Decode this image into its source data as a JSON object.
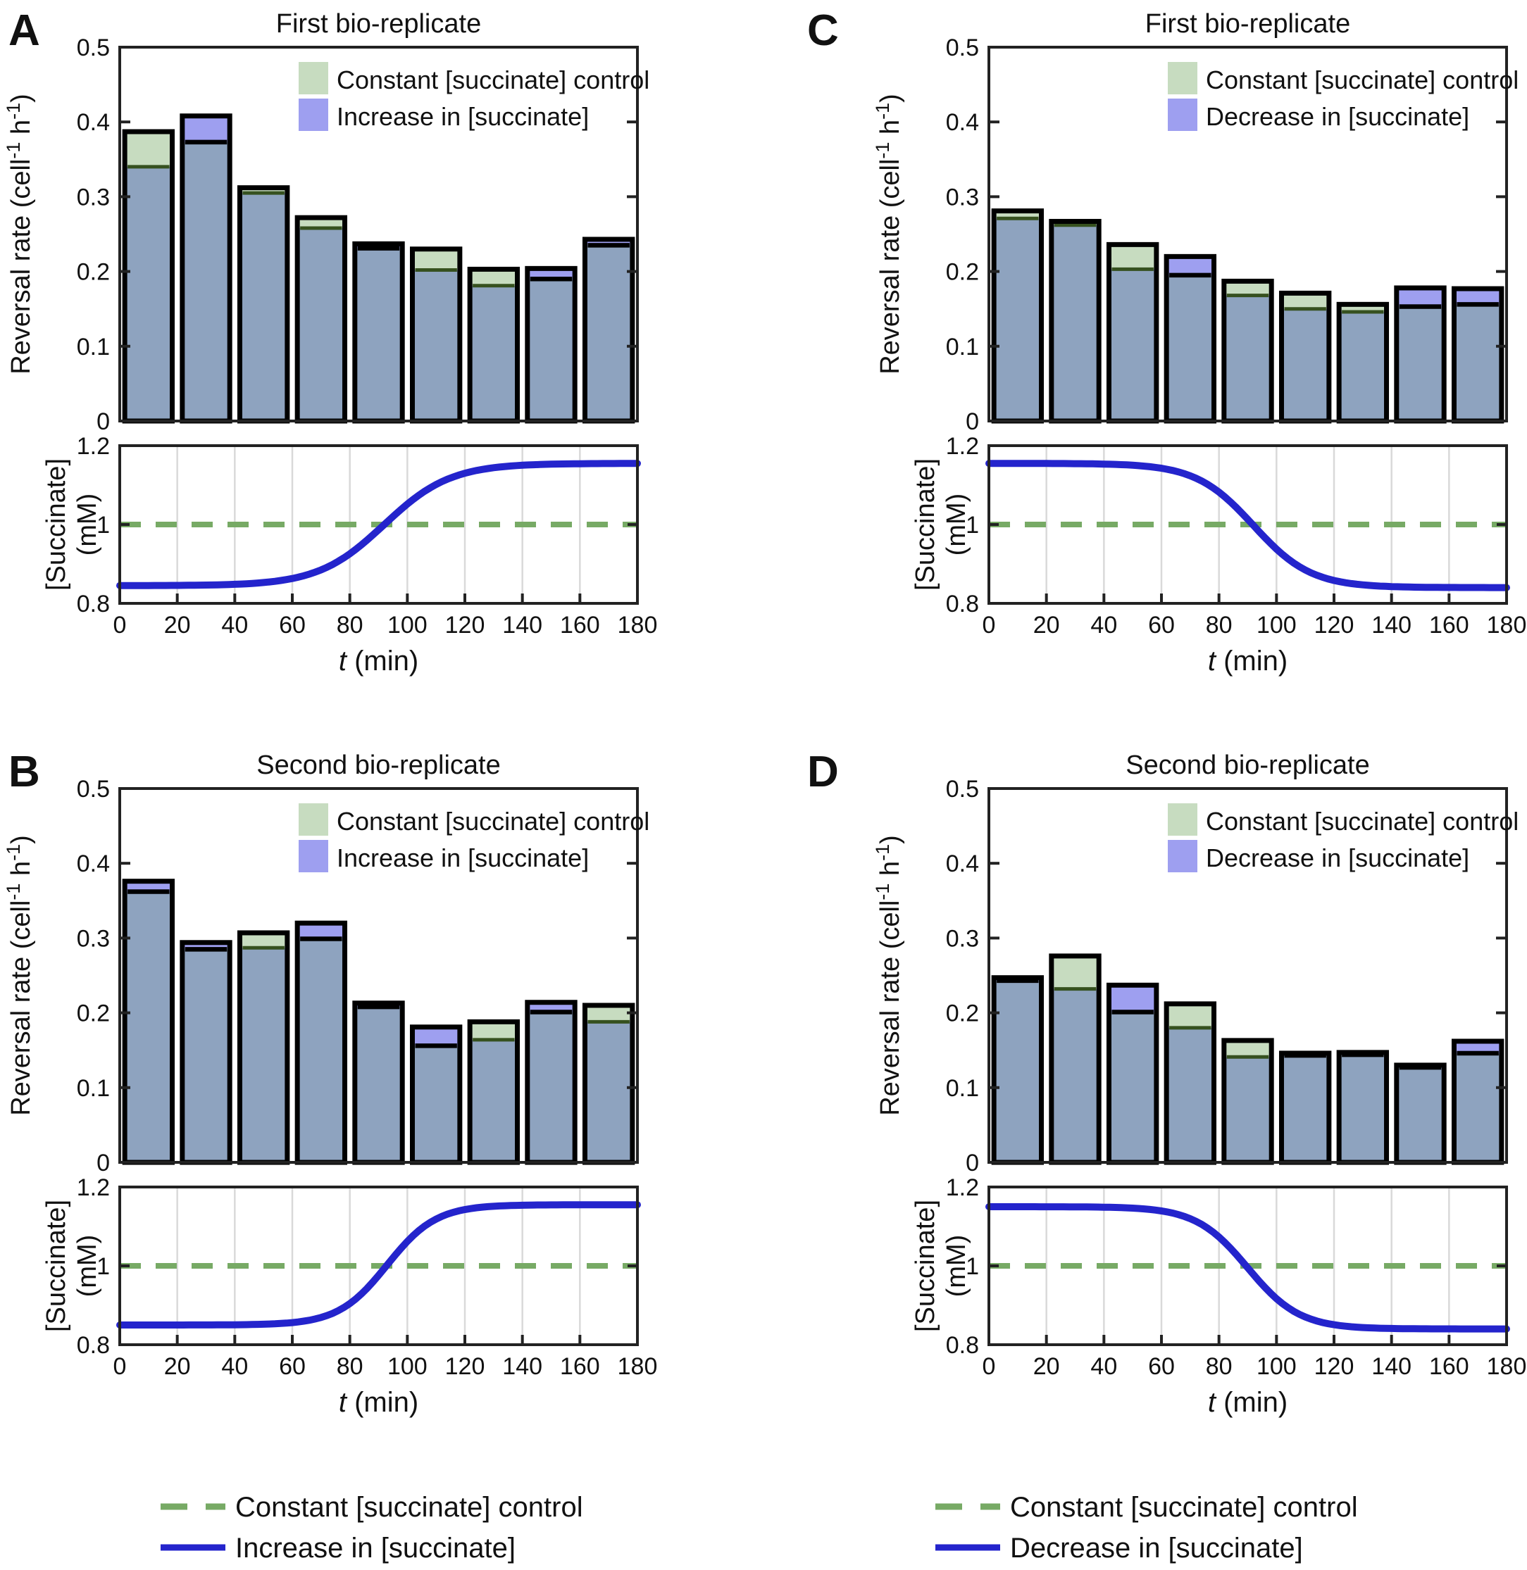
{
  "chart_data": [
    {
      "panel_letter": "A",
      "title": "First bio-replicate",
      "bar_chart": {
        "type": "bar",
        "ylabel_parts": [
          {
            "t": "Reversal rate (cell"
          },
          {
            "t": "-1",
            "sup": true
          },
          {
            "t": " h"
          },
          {
            "t": "-1",
            "sup": true
          },
          {
            "t": ")"
          }
        ],
        "ylim": [
          0,
          0.5
        ],
        "yticks": [
          0,
          0.1,
          0.2,
          0.3,
          0.4,
          0.5
        ],
        "ytick_labels": [
          "0",
          "0.1",
          "0.2",
          "0.3",
          "0.4",
          "0.5"
        ],
        "bin_centers_min": [
          10,
          30,
          50,
          70,
          90,
          110,
          130,
          150,
          170
        ],
        "bar_width_min": 16.5,
        "overlap_color": "#8ea3bf",
        "legend_position": "top-right",
        "series": [
          {
            "name": "Constant [succinate] control",
            "color": "#c7dcc0",
            "edge_color": "#36511f",
            "values": [
              0.387,
              0.373,
              0.312,
              0.272,
              0.231,
              0.23,
              0.203,
              0.19,
              0.235
            ]
          },
          {
            "name": "Increase in [succinate]",
            "color": "#9e9ff0",
            "edge_color": "#000000",
            "values": [
              0.34,
              0.408,
              0.305,
              0.258,
              0.237,
              0.202,
              0.181,
              0.204,
              0.243
            ]
          }
        ]
      },
      "line_chart": {
        "type": "line",
        "ylabel_lines": [
          "[Succinate]",
          "(mM)"
        ],
        "xlabel_parts": [
          {
            "t": "t",
            "italic": true
          },
          {
            "t": " (min)"
          }
        ],
        "xlim": [
          0,
          180
        ],
        "ylim": [
          0.8,
          1.2
        ],
        "xticks": [
          0,
          20,
          40,
          60,
          80,
          100,
          120,
          140,
          160,
          180
        ],
        "xtick_labels": [
          "0",
          "20",
          "40",
          "60",
          "80",
          "100",
          "120",
          "140",
          "160",
          "180"
        ],
        "yticks": [
          0.8,
          1.0,
          1.2
        ],
        "ytick_labels": [
          "0.8",
          "1",
          "1.2"
        ],
        "grid": "vertical",
        "series": [
          {
            "name": "Constant [succinate] control",
            "style": "dashed",
            "color": "#77aa65",
            "constant_value": 1.0
          },
          {
            "name": "Increase in [succinate]",
            "style": "solid",
            "color": "#2424cc",
            "sigmoid": {
              "start_mM": 0.845,
              "end_mM": 1.155,
              "midpoint_min": 92,
              "tau_min": 11.5
            }
          }
        ]
      }
    },
    {
      "panel_letter": "B",
      "title": "Second bio-replicate",
      "bar_chart": {
        "type": "bar",
        "ylabel_parts": [
          {
            "t": "Reversal rate (cell"
          },
          {
            "t": "-1",
            "sup": true
          },
          {
            "t": " h"
          },
          {
            "t": "-1",
            "sup": true
          },
          {
            "t": ")"
          }
        ],
        "ylim": [
          0,
          0.5
        ],
        "yticks": [
          0,
          0.1,
          0.2,
          0.3,
          0.4,
          0.5
        ],
        "ytick_labels": [
          "0",
          "0.1",
          "0.2",
          "0.3",
          "0.4",
          "0.5"
        ],
        "bin_centers_min": [
          10,
          30,
          50,
          70,
          90,
          110,
          130,
          150,
          170
        ],
        "bar_width_min": 16.5,
        "overlap_color": "#8ea3bf",
        "legend_position": "top-right",
        "series": [
          {
            "name": "Constant [succinate] control",
            "color": "#c7dcc0",
            "edge_color": "#36511f",
            "values": [
              0.362,
              0.285,
              0.307,
              0.299,
              0.208,
              0.156,
              0.188,
              0.201,
              0.21
            ]
          },
          {
            "name": "Increase in [succinate]",
            "color": "#9e9ff0",
            "edge_color": "#000000",
            "values": [
              0.376,
              0.294,
              0.287,
              0.32,
              0.213,
              0.181,
              0.164,
              0.214,
              0.188
            ]
          }
        ]
      },
      "line_chart": {
        "type": "line",
        "ylabel_lines": [
          "[Succinate]",
          "(mM)"
        ],
        "xlabel_parts": [
          {
            "t": "t",
            "italic": true
          },
          {
            "t": " (min)"
          }
        ],
        "xlim": [
          0,
          180
        ],
        "ylim": [
          0.8,
          1.2
        ],
        "xticks": [
          0,
          20,
          40,
          60,
          80,
          100,
          120,
          140,
          160,
          180
        ],
        "xtick_labels": [
          "0",
          "20",
          "40",
          "60",
          "80",
          "100",
          "120",
          "140",
          "160",
          "180"
        ],
        "yticks": [
          0.8,
          1.0,
          1.2
        ],
        "ytick_labels": [
          "0.8",
          "1",
          "1.2"
        ],
        "grid": "vertical",
        "series": [
          {
            "name": "Constant [succinate] control",
            "style": "dashed",
            "color": "#77aa65",
            "constant_value": 1.0
          },
          {
            "name": "Increase in [succinate]",
            "style": "solid",
            "color": "#2424cc",
            "sigmoid": {
              "start_mM": 0.85,
              "end_mM": 1.155,
              "midpoint_min": 93,
              "tau_min": 8.5
            }
          }
        ]
      }
    },
    {
      "panel_letter": "C",
      "title": "First bio-replicate",
      "bar_chart": {
        "type": "bar",
        "ylabel_parts": [
          {
            "t": "Reversal rate (cell"
          },
          {
            "t": "-1",
            "sup": true
          },
          {
            "t": " h"
          },
          {
            "t": "-1",
            "sup": true
          },
          {
            "t": ")"
          }
        ],
        "ylim": [
          0,
          0.5
        ],
        "yticks": [
          0,
          0.1,
          0.2,
          0.3,
          0.4,
          0.5
        ],
        "ytick_labels": [
          "0",
          "0.1",
          "0.2",
          "0.3",
          "0.4",
          "0.5"
        ],
        "bin_centers_min": [
          10,
          30,
          50,
          70,
          90,
          110,
          130,
          150,
          170
        ],
        "bar_width_min": 16.5,
        "overlap_color": "#8ea3bf",
        "legend_position": "top-right",
        "series": [
          {
            "name": "Constant [succinate] control",
            "color": "#c7dcc0",
            "edge_color": "#36511f",
            "values": [
              0.281,
              0.267,
              0.236,
              0.195,
              0.187,
              0.171,
              0.156,
              0.153,
              0.156
            ]
          },
          {
            "name": "Decrease in [succinate]",
            "color": "#9e9ff0",
            "edge_color": "#000000",
            "values": [
              0.271,
              0.262,
              0.203,
              0.22,
              0.168,
              0.15,
              0.146,
              0.178,
              0.177
            ]
          }
        ]
      },
      "line_chart": {
        "type": "line",
        "ylabel_lines": [
          "[Succinate]",
          "(mM)"
        ],
        "xlabel_parts": [
          {
            "t": "t",
            "italic": true
          },
          {
            "t": " (min)"
          }
        ],
        "xlim": [
          0,
          180
        ],
        "ylim": [
          0.8,
          1.2
        ],
        "xticks": [
          0,
          20,
          40,
          60,
          80,
          100,
          120,
          140,
          160,
          180
        ],
        "xtick_labels": [
          "0",
          "20",
          "40",
          "60",
          "80",
          "100",
          "120",
          "140",
          "160",
          "180"
        ],
        "yticks": [
          0.8,
          1.0,
          1.2
        ],
        "ytick_labels": [
          "0.8",
          "1",
          "1.2"
        ],
        "grid": "vertical",
        "series": [
          {
            "name": "Constant [succinate] control",
            "style": "dashed",
            "color": "#77aa65",
            "constant_value": 1.0
          },
          {
            "name": "Decrease in [succinate]",
            "style": "solid",
            "color": "#2424cc",
            "sigmoid": {
              "start_mM": 1.155,
              "end_mM": 0.84,
              "midpoint_min": 92,
              "tau_min": 10
            }
          }
        ]
      }
    },
    {
      "panel_letter": "D",
      "title": "Second bio-replicate",
      "bar_chart": {
        "type": "bar",
        "ylabel_parts": [
          {
            "t": "Reversal rate (cell"
          },
          {
            "t": "-1",
            "sup": true
          },
          {
            "t": " h"
          },
          {
            "t": "-1",
            "sup": true
          },
          {
            "t": ")"
          }
        ],
        "ylim": [
          0,
          0.5
        ],
        "yticks": [
          0,
          0.1,
          0.2,
          0.3,
          0.4,
          0.5
        ],
        "ytick_labels": [
          "0",
          "0.1",
          "0.2",
          "0.3",
          "0.4",
          "0.5"
        ],
        "bin_centers_min": [
          10,
          30,
          50,
          70,
          90,
          110,
          130,
          150,
          170
        ],
        "bar_width_min": 16.5,
        "overlap_color": "#8ea3bf",
        "legend_position": "top-right",
        "series": [
          {
            "name": "Constant [succinate] control",
            "color": "#c7dcc0",
            "edge_color": "#36511f",
            "values": [
              0.243,
              0.276,
              0.201,
              0.212,
              0.163,
              0.143,
              0.144,
              0.127,
              0.146
            ]
          },
          {
            "name": "Decrease in [succinate]",
            "color": "#9e9ff0",
            "edge_color": "#000000",
            "values": [
              0.247,
              0.232,
              0.237,
              0.18,
              0.141,
              0.146,
              0.147,
              0.13,
              0.162
            ]
          }
        ]
      },
      "line_chart": {
        "type": "line",
        "ylabel_lines": [
          "[Succinate]",
          "(mM)"
        ],
        "xlabel_parts": [
          {
            "t": "t",
            "italic": true
          },
          {
            "t": " (min)"
          }
        ],
        "xlim": [
          0,
          180
        ],
        "ylim": [
          0.8,
          1.2
        ],
        "xticks": [
          0,
          20,
          40,
          60,
          80,
          100,
          120,
          140,
          160,
          180
        ],
        "xtick_labels": [
          "0",
          "20",
          "40",
          "60",
          "80",
          "100",
          "120",
          "140",
          "160",
          "180"
        ],
        "yticks": [
          0.8,
          1.0,
          1.2
        ],
        "ytick_labels": [
          "0.8",
          "1",
          "1.2"
        ],
        "grid": "vertical",
        "series": [
          {
            "name": "Constant [succinate] control",
            "style": "dashed",
            "color": "#77aa65",
            "constant_value": 1.0
          },
          {
            "name": "Decrease in [succinate]",
            "style": "solid",
            "color": "#2424cc",
            "sigmoid": {
              "start_mM": 1.15,
              "end_mM": 0.84,
              "midpoint_min": 90,
              "tau_min": 9
            }
          }
        ]
      }
    }
  ],
  "bottom_legends": [
    {
      "items": [
        {
          "label": "Constant [succinate] control",
          "style": "dashed",
          "color": "#77aa65"
        },
        {
          "label": "Increase in [succinate]",
          "style": "solid",
          "color": "#2424cc"
        }
      ]
    },
    {
      "items": [
        {
          "label": "Constant [succinate] control",
          "style": "dashed",
          "color": "#77aa65"
        },
        {
          "label": "Decrease in [succinate]",
          "style": "solid",
          "color": "#2424cc"
        }
      ]
    }
  ],
  "style_colors": {
    "axis": "#222222",
    "grid": "#d9d9d9",
    "bar_outline": "#000000",
    "text": "#111111"
  }
}
